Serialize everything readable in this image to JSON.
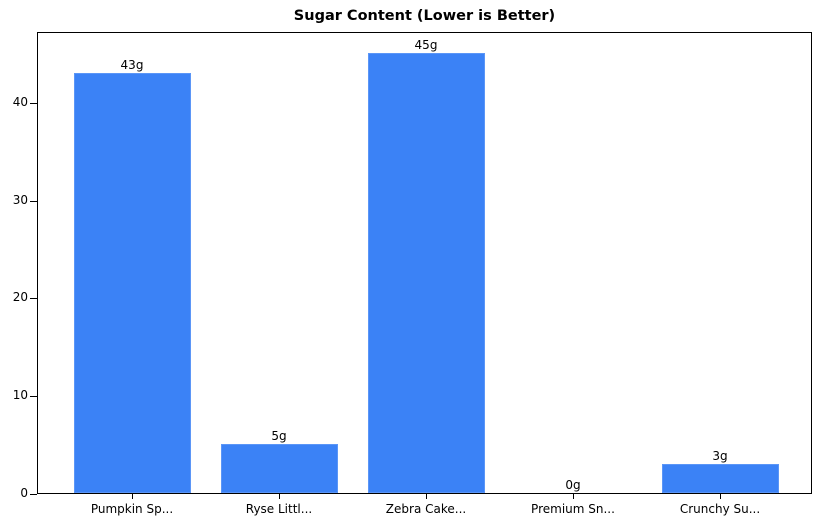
{
  "chart_data": {
    "type": "bar",
    "title": "Sugar Content (Lower is Better)",
    "xlabel": "",
    "ylabel": "",
    "categories": [
      "Pumpkin Sp...",
      "Ryse Littl...",
      "Zebra Cake...",
      "Premium Sn...",
      "Crunchy Su..."
    ],
    "values": [
      43,
      5,
      45,
      0,
      3
    ],
    "value_labels": [
      "43g",
      "5g",
      "45g",
      "0g",
      "3g"
    ],
    "ylim": [
      0,
      47.25
    ],
    "yticks": [
      0,
      10,
      20,
      30,
      40
    ],
    "ytick_labels": [
      "0",
      "10",
      "20",
      "30",
      "40"
    ],
    "grid": false,
    "legend": null,
    "bar_color": "#3b82f6"
  }
}
